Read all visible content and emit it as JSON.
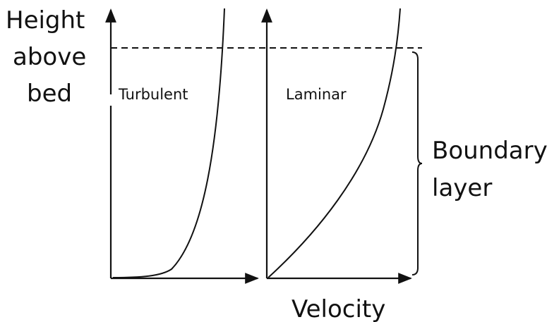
{
  "y_axis_label": [
    "Height",
    "above",
    "bed"
  ],
  "x_axis_label": "Velocity",
  "panels": [
    {
      "label": "Turbulent"
    },
    {
      "label": "Laminar"
    }
  ],
  "boundary_label": [
    "Boundary",
    "layer"
  ]
}
